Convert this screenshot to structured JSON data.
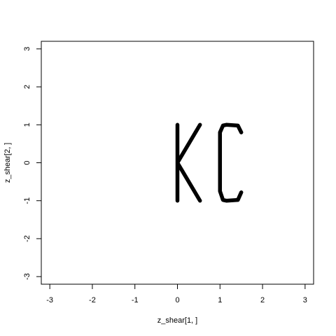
{
  "chart_data": {
    "type": "scatter",
    "title": "",
    "xlabel": "z_shear[1, ]",
    "ylabel": "z_shear[2, ]",
    "xlim": [
      -3.2,
      3.2
    ],
    "ylim": [
      -3.2,
      3.2
    ],
    "x_ticks": [
      "-3",
      "-2",
      "-1",
      "0",
      "1",
      "2",
      "3"
    ],
    "y_ticks": [
      "-3",
      "-2",
      "-1",
      "0",
      "1",
      "2",
      "3"
    ],
    "grid": false,
    "point_color": "#000000",
    "series": [
      {
        "points": [
          [
            0.0,
            1.0
          ],
          [
            0.0,
            0.0
          ],
          [
            0.0,
            -1.0
          ],
          [
            0.0,
            0.0
          ],
          [
            0.53,
            1.0
          ],
          [
            0.0,
            0.0
          ],
          [
            0.53,
            -1.0
          ]
        ]
      },
      {
        "points": [
          [
            1.5,
            0.8
          ],
          [
            1.42,
            0.98
          ],
          [
            1.15,
            1.0
          ],
          [
            1.07,
            0.98
          ],
          [
            1.0,
            0.8
          ],
          [
            1.0,
            -0.75
          ],
          [
            1.07,
            -0.98
          ],
          [
            1.15,
            -1.0
          ],
          [
            1.42,
            -0.98
          ],
          [
            1.5,
            -0.78
          ]
        ]
      }
    ]
  }
}
